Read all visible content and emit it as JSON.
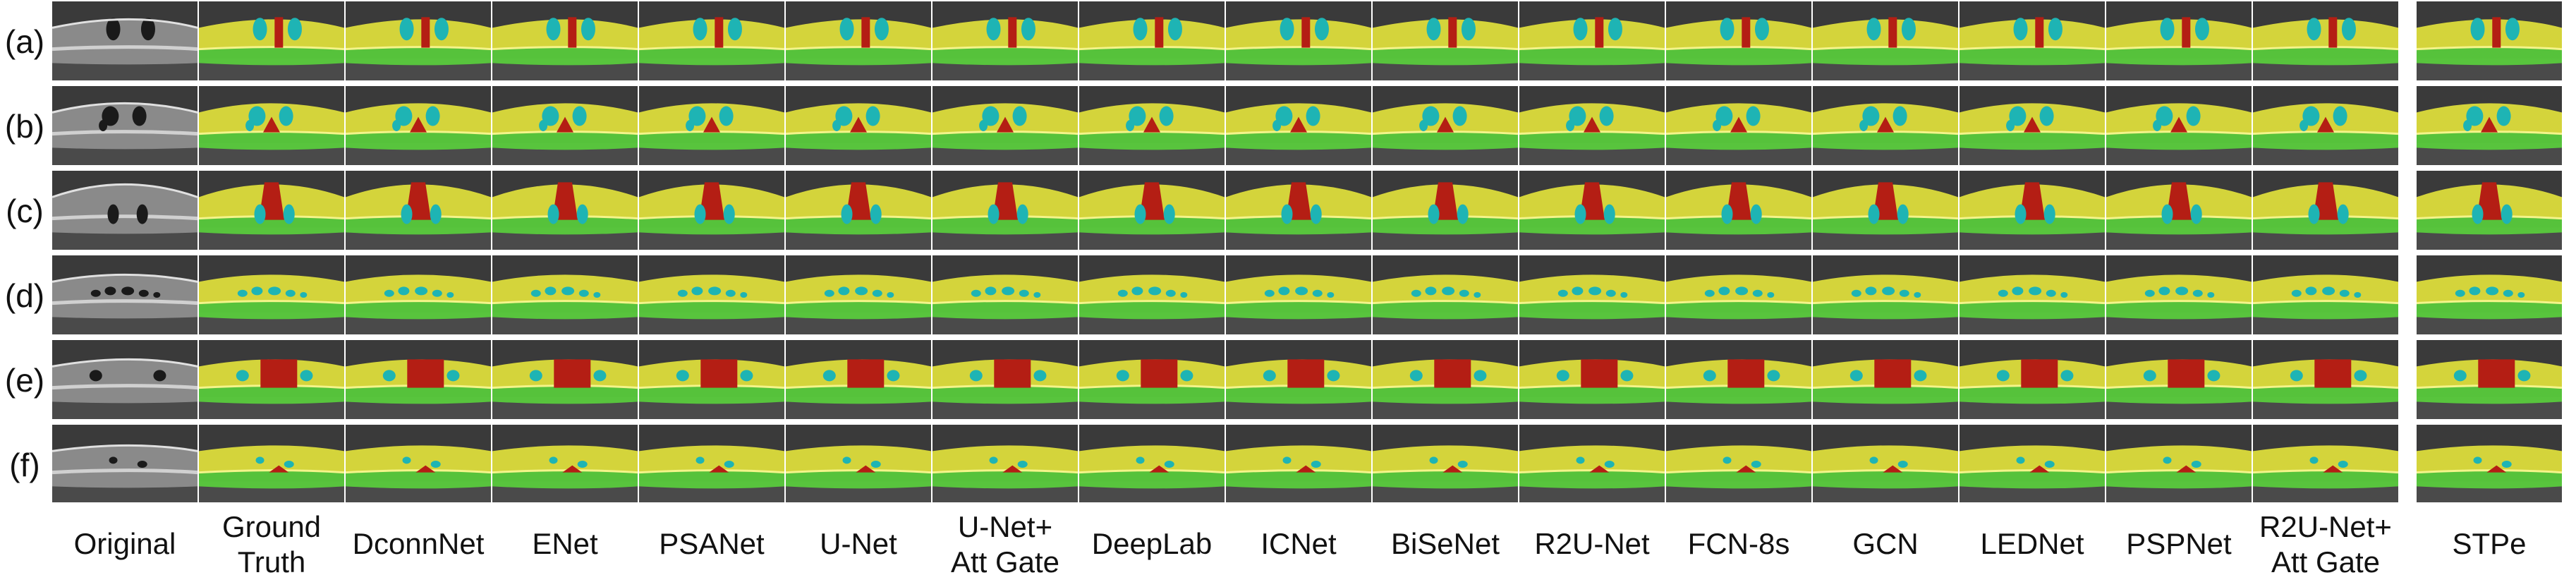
{
  "row_labels": [
    "(a)",
    "(b)",
    "(c)",
    "(d)",
    "(e)",
    "(f)"
  ],
  "column_labels": [
    "Original",
    "Ground\nTruth",
    "DconnNet",
    "ENet",
    "PSANet",
    "U-Net",
    "U-Net+\nAtt Gate",
    "DeepLab",
    "ICNet",
    "BiSeNet",
    "R2U-Net",
    "FCN-8s",
    "GCN",
    "LEDNet",
    "PSPNet",
    "R2U-Net+\nAtt Gate",
    "STPe"
  ],
  "colors": {
    "background": "#ffffff",
    "oct_scan": "#3a3a3a",
    "retina_upper_layer": "#e6e63c",
    "retina_lower_layer": "#5ad23c",
    "fluid_cyst": "#1eb4b4",
    "subretinal_fluid": "#b41e14",
    "text": "#111111"
  }
}
